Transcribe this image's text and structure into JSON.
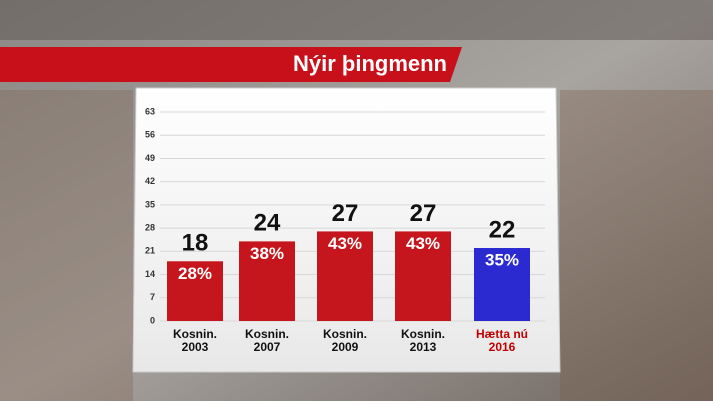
{
  "chart_data": {
    "type": "bar",
    "title": "Nýir þingmenn",
    "categories": [
      [
        "Kosnin.",
        "2003"
      ],
      [
        "Kosnin.",
        "2007"
      ],
      [
        "Kosnin.",
        "2009"
      ],
      [
        "Kosnin.",
        "2013"
      ],
      [
        "Hætta nú",
        "2016"
      ]
    ],
    "category_label_colors": [
      "#111111",
      "#111111",
      "#111111",
      "#111111",
      "#c00000"
    ],
    "values": [
      18,
      24,
      27,
      27,
      22
    ],
    "shares": [
      28,
      38,
      43,
      43,
      35
    ],
    "share_labels": [
      "28%",
      "38%",
      "43%",
      "43%",
      "35%"
    ],
    "colors": [
      "#c4161c",
      "#c4161c",
      "#c4161c",
      "#c4161c",
      "#2a2ad0"
    ],
    "ylim": [
      0,
      63
    ],
    "yticks": [
      0,
      7,
      14,
      21,
      28,
      35,
      42,
      49,
      56,
      63
    ],
    "grid": true
  }
}
